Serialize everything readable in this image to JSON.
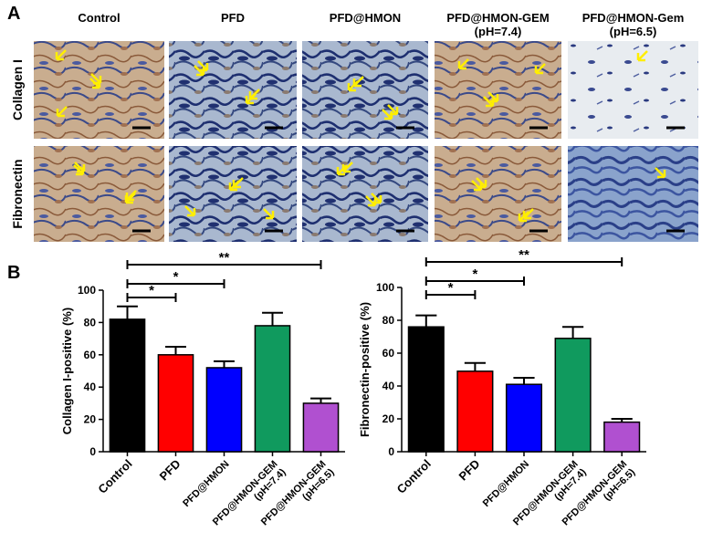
{
  "panel_a": {
    "label": "A",
    "columns": [
      "Control",
      "PFD",
      "PFD@HMON",
      "PFD@HMON-GEM\n(pH=7.4)",
      "PFD@HMON-Gem\n(pH=6.5)"
    ],
    "rows": [
      "Collagen I",
      "Fibronectin"
    ]
  },
  "panel_b": {
    "label": "B"
  },
  "chart_data": [
    {
      "type": "bar",
      "y_label": "Collagen I-positive (%)",
      "categories": [
        "Control",
        "PFD",
        "PFD@HMON",
        "PFD@HMON-GEM\n(pH=7.4)",
        "PFD@HMON-GEM\n(pH=6.5)"
      ],
      "values": [
        82,
        60,
        52,
        78,
        30
      ],
      "errors": [
        8,
        5,
        4,
        8,
        3
      ],
      "colors": [
        "#000000",
        "#ff0000",
        "#0000ff",
        "#109a5e",
        "#b050d0"
      ],
      "ylim": [
        0,
        100
      ],
      "yticks": [
        0,
        20,
        40,
        60,
        80,
        100
      ],
      "brackets": [
        {
          "categories": [
            0,
            1
          ],
          "label": "*"
        },
        {
          "categories": [
            0,
            2
          ],
          "label": "*"
        },
        {
          "categories": [
            0,
            4
          ],
          "label": "**"
        }
      ]
    },
    {
      "type": "bar",
      "y_label": "Fibronectin-positive (%)",
      "categories": [
        "Control",
        "PFD",
        "PFD@HMON",
        "PFD@HMON-GEM\n(pH=7.4)",
        "PFD@HMON-GEM\n(pH=6.5)"
      ],
      "values": [
        76,
        49,
        41,
        69,
        18
      ],
      "errors": [
        7,
        5,
        4,
        7,
        2
      ],
      "colors": [
        "#000000",
        "#ff0000",
        "#0000ff",
        "#109a5e",
        "#b050d0"
      ],
      "ylim": [
        0,
        100
      ],
      "yticks": [
        0,
        20,
        40,
        60,
        80,
        100
      ],
      "brackets": [
        {
          "categories": [
            0,
            1
          ],
          "label": "*"
        },
        {
          "categories": [
            0,
            2
          ],
          "label": "*"
        },
        {
          "categories": [
            0,
            4
          ],
          "label": "**"
        }
      ]
    }
  ]
}
